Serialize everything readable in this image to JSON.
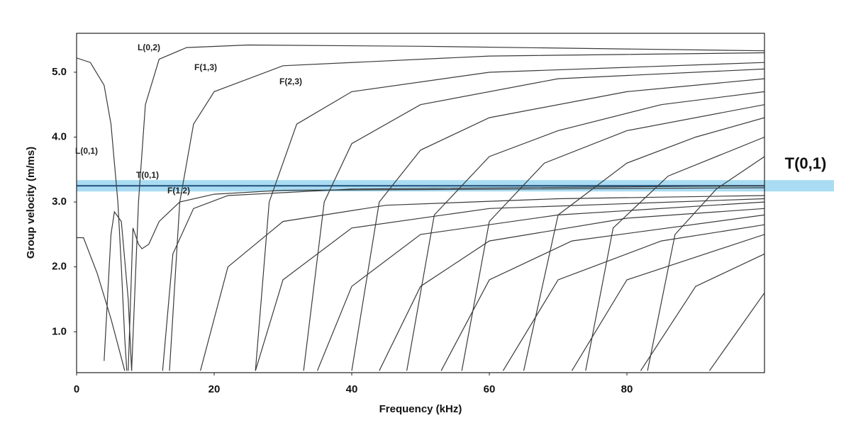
{
  "chart_data": {
    "type": "line",
    "x_label": "Frequency (kHz)",
    "y_label": "Group velocity (m/ms)",
    "xlim": [
      0,
      100
    ],
    "ylim": [
      0.37,
      5.6
    ],
    "xticks": [
      0,
      20,
      40,
      60,
      80
    ],
    "yticks": [
      {
        "value": 1,
        "label": "1.0"
      },
      {
        "value": 2,
        "label": "2.0"
      },
      {
        "value": 3,
        "label": "3.0"
      },
      {
        "value": 4,
        "label": "4.0"
      },
      {
        "value": 5,
        "label": "5.0"
      }
    ],
    "line_color": "#3a3a3a",
    "highlight": {
      "label": "T(0,1)",
      "value": 3.25,
      "color": "#a9dcf2",
      "line_color": "#1f4e79",
      "text_color": "#1f4e79"
    },
    "series": [
      {
        "name": "L(0,2)",
        "x": [
          8,
          9,
          10,
          12,
          16,
          25,
          50,
          100
        ],
        "values": [
          0.4,
          3.0,
          4.5,
          5.2,
          5.38,
          5.42,
          5.4,
          5.33
        ]
      },
      {
        "name": "F(1,3)",
        "x": [
          13.5,
          15,
          17,
          20,
          30,
          60,
          100
        ],
        "values": [
          0.4,
          3.0,
          4.2,
          4.7,
          5.1,
          5.25,
          5.3
        ]
      },
      {
        "name": "F(2,3)",
        "x": [
          26,
          28,
          32,
          40,
          60,
          100
        ],
        "values": [
          0.4,
          3.0,
          4.2,
          4.7,
          5.0,
          5.15
        ]
      },
      {
        "name": "L(0,1)",
        "x": [
          0,
          2,
          4,
          5,
          6,
          6.5,
          7,
          7.3
        ],
        "values": [
          5.22,
          5.15,
          4.8,
          4.2,
          3.0,
          2.0,
          0.9,
          0.4
        ]
      },
      {
        "name": "T(0,1)",
        "x": [
          0,
          100
        ],
        "values": [
          3.25,
          3.25
        ]
      },
      {
        "name": "F(1,2)",
        "x": [
          12.5,
          14,
          17,
          22,
          40,
          100
        ],
        "values": [
          0.4,
          2.2,
          2.9,
          3.1,
          3.2,
          3.25
        ]
      },
      {
        "x": [
          7.5,
          8.2,
          9,
          9.5,
          10.5,
          12,
          15,
          20,
          30,
          100
        ],
        "values": [
          0.4,
          2.6,
          2.35,
          2.28,
          2.35,
          2.7,
          3.0,
          3.12,
          3.18,
          3.22
        ]
      },
      {
        "x": [
          0,
          1,
          3,
          5,
          6,
          7
        ],
        "values": [
          2.45,
          2.45,
          1.9,
          1.2,
          0.8,
          0.4
        ]
      },
      {
        "x": [
          4,
          5,
          5.5,
          6.5,
          7.5,
          8
        ],
        "values": [
          0.55,
          2.5,
          2.85,
          2.7,
          1.5,
          0.4
        ]
      },
      {
        "x": [
          33,
          36,
          40,
          50,
          70,
          100
        ],
        "values": [
          0.4,
          3.0,
          3.9,
          4.5,
          4.9,
          5.05
        ]
      },
      {
        "x": [
          40,
          44,
          50,
          60,
          80,
          100
        ],
        "values": [
          0.4,
          3.0,
          3.8,
          4.3,
          4.7,
          4.9
        ]
      },
      {
        "x": [
          48,
          52,
          60,
          70,
          85,
          100
        ],
        "values": [
          0.4,
          2.8,
          3.7,
          4.1,
          4.5,
          4.7
        ]
      },
      {
        "x": [
          56,
          60,
          68,
          80,
          100
        ],
        "values": [
          0.4,
          2.7,
          3.6,
          4.1,
          4.5
        ]
      },
      {
        "x": [
          65,
          70,
          80,
          90,
          100
        ],
        "values": [
          0.4,
          2.8,
          3.6,
          4.0,
          4.3
        ]
      },
      {
        "x": [
          74,
          78,
          86,
          100
        ],
        "values": [
          0.4,
          2.6,
          3.4,
          4.0
        ]
      },
      {
        "x": [
          83,
          87,
          93,
          100
        ],
        "values": [
          0.4,
          2.5,
          3.2,
          3.7
        ]
      },
      {
        "x": [
          18,
          22,
          30,
          45,
          70,
          100
        ],
        "values": [
          0.4,
          2.0,
          2.7,
          2.95,
          3.05,
          3.1
        ]
      },
      {
        "x": [
          26,
          30,
          40,
          60,
          100
        ],
        "values": [
          0.4,
          1.8,
          2.6,
          2.9,
          3.05
        ]
      },
      {
        "x": [
          35,
          40,
          50,
          70,
          100
        ],
        "values": [
          0.4,
          1.7,
          2.5,
          2.8,
          3.0
        ]
      },
      {
        "x": [
          44,
          50,
          60,
          80,
          100
        ],
        "values": [
          0.4,
          1.7,
          2.4,
          2.75,
          2.9
        ]
      },
      {
        "x": [
          53,
          60,
          72,
          100
        ],
        "values": [
          0.4,
          1.8,
          2.4,
          2.8
        ]
      },
      {
        "x": [
          62,
          70,
          85,
          100
        ],
        "values": [
          0.4,
          1.8,
          2.4,
          2.65
        ]
      },
      {
        "x": [
          72,
          80,
          100
        ],
        "values": [
          0.4,
          1.8,
          2.5
        ]
      },
      {
        "x": [
          82,
          90,
          100
        ],
        "values": [
          0.4,
          1.7,
          2.2
        ]
      },
      {
        "x": [
          92,
          100
        ],
        "values": [
          0.4,
          1.6
        ]
      }
    ]
  }
}
